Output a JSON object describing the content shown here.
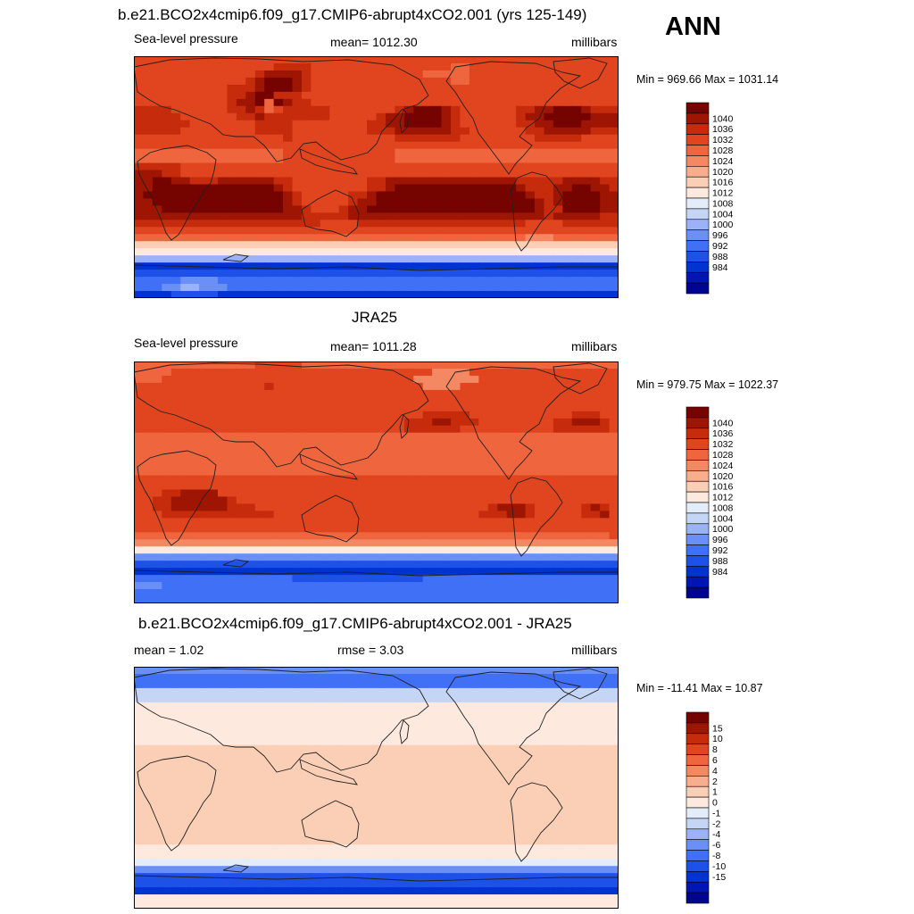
{
  "season": "ANN",
  "panels": [
    {
      "title": "b.e21.BCO2x4cmip6.f09_g17.CMIP6-abrupt4xCO2.001 (yrs 125-149)",
      "left_label": "Sea-level pressure",
      "center_label": "mean= 1012.30",
      "units": "millibars",
      "minmax": "Min = 969.66 Max = 1031.14",
      "palette": "slp",
      "map": [
        "eeeeeeeeeeeeeeeeeeeeeeeeeeeeeeeeeeeeeeeeeeeeeeeeeeee",
        "eeeeeeeeeeeeeeeffffeeeeeeeeeeeeeeeddeeeeeeeeeeeeeeee",
        "eeeeeeeeeeeeefggggfeeeeeeeeeeeedddddeeeeeeeeeeeeeeee",
        "eeeeeeeeeeeefgjjhgfeeeeeeeeeeeeeeeddeeeeeeeeeeeeeeee",
        "eeeeeeeeeefffgkihgfeeeeeeeeeeeeeeeeeeeeeeeeeeeeeeeee",
        "eeeeeeeeeeffgikfffeeeeeeeeeeeeeeeeeeeeeeeeeeeeeeeeee",
        "eeeeeeeeeefgghdhgffeeeeeeeeeeeeeeeeeeeeeeeeeeeeeeeee",
        "ffffeeeeeeffgfdefffffeeeeeeefghhhgfeeeeeeffgghhhgfff",
        "fffffeeeeeeffgfffffffeeeeefgghiihgfeeeeeefgghiiihggg",
        "ffffffeeeeeeeffffeeeeeeeeffgghhhhgfeeeeeeffgghhhgggg",
        "fffffeeeeeeeeffffeeeeeeeefffggggggffeeeeeeffgggggfff",
        "eeeeeeeeeeeeeeeefeeeeeeeeeeefffffffeeeeeeeefffffeeee",
        "eeeeeeeeeeeeeeeeeeeeeeeeeeeeeeeeeeeeeeeeeeeeeeeeeeee",
        "ddddddddddddddddeeeeeeeeeeeedddddddddddddddddddddddd",
        "ddddddddddddddddeeeeeeeeeeeedddddddddddddddddddddddd",
        "fffffeeeeeeeeeeeeeeeeeeeeeeeeeeeeeeeeeeeeeeeeeeeeeee",
        "gggffeeeeeeeeeeeeeeeeeeeeeeeeeeeeeeeeeeeeeeeeeeeeeee",
        "gghhggfffggggggffeeeeeeeeffggggggggggggggfffffggggff",
        "gghhhhhhhhhhhhhgfeeeeeeeeffghhhhhhhhhhhhhgfffgghhggf",
        "ghhhhhhhihhhhhhhgfeeeeeffghhhhhhhhhiiihhhhgffghhhhgg",
        "gghhhhhhhhhhhhhhgfeeeeefgghhhhhhhhhiiiihhhhgfghhhhgg",
        "ggghhhhhhhhhhhhhggfeeefgghhhhhhhhhhhhhhhhhhgffhhhhgg",
        "ggggggggggggggggggfffffgggggggggggggggggggggfgggggff",
        "ffffffffffffffffffffeeeeffffffffffffffffffeeeeffffff",
        "eeeeeeeeeeeeeeeeeeeeeeeeeeeeeeeeeeeeeeeeeeeeeeeeeeee",
        "ddddddddddddddddddddddddddddddddddddddddddcccddddddd",
        "aaaaaaaaaaaaaaaaaaaaaaaaaaaaaaaaaaaaaaaaaaaaaaaaaaaa",
        "9999999999999999999999999999999999999999999999999999",
        "6666666666666666666666666666666666666666666666666666",
        "2222222222222222222222222222222222222222222222222222",
        "3333333333333333333333333333333333333333333333333333",
        "4444455554444444444444444444444444444444444444444444",
        "4445566555444444444444444444444444444444444444444444",
        "2222333332222222222222222222222222222222222222222222"
      ],
      "colorbar": {
        "colors": [
          "#000590",
          "#0016b4",
          "#0133d1",
          "#1e51e8",
          "#3f70f5",
          "#6a90f8",
          "#9bb2f6",
          "#c5d5f5",
          "#e3ecf9",
          "#fde9dd",
          "#fbcfb5",
          "#f8ad8c",
          "#f48862",
          "#ee653e",
          "#e0451f",
          "#c62c0c",
          "#9e1504",
          "#750300"
        ],
        "labels": [
          "984",
          "988",
          "992",
          "996",
          "1000",
          "1004",
          "1008",
          "1012",
          "1016",
          "1020",
          "1024",
          "1028",
          "1032",
          "1036",
          "1040"
        ]
      }
    },
    {
      "title": "JRA25",
      "left_label": "Sea-level pressure",
      "center_label": "mean= 1011.28",
      "units": "millibars",
      "minmax": "Min = 979.75 Max = 1022.37",
      "palette": "slp",
      "map": [
        "dddddddddddddeeeeedddddddddddddddddddddddddddddddddd",
        "ddddeeeeeeeeeeeeeeeeeeeeeeeeeeeecccceeeeeeeeeeeeeeee",
        "dddeeeeeeeeeeeeeeeeeeeeeeeeeeeccccccceeeeeeeeeeeeeee",
        "eeeeeeeeeeeeeefeeeeeeeeeeeeeeeecccceeeeeeeeeeeeeeeee",
        "eeeeeeeeeeeeeeeeeeeeeeeeeeeeeeeeeeeeeeeeeeeeeeeeeeee",
        "eeeeeeeeeeeeeeeeeeeeeeeeeeeeeeeeeeeeeeeeeeeeeeeeeeee",
        "eeeeeeeeeeeeeeeeeeeeeeeeeeeeeeeeeeeeeeeeeeeeeeeeeeee",
        "eeeeeeeeeeeeeeeeeeeeeeeeeeeeeeefffffeeeeeeeeeeefffee",
        "eeeeeeeeeeeeeeeeeeeeeeeeeeeeefffggfffeeeeeeeeffgggfe",
        "eeeeeeeeeeeeeeeeeeeeeeeeeeeeeffffffeeeeeeeeeeffffffe",
        "dddddddddddddddddddddddddddddddddddddddddddddddddddd",
        "dddddddddddddddddddddddddddddddddddddddddddddddddddd",
        "dddddddddddddddddddddddddddddddddddddddddddddddddddd",
        "dddddddddddddddddddddddddddddddddddddddddddddddddddd",
        "dddddddddddddddddddddddddddddddddddddddddddddddddddd",
        "dddddddddddddddddddddddddddddddddddddddddddddddddddd",
        "eeeeeeeeeeeeeeeeeeeeeeeeeeeeeeeeeeeeeeeeeeeeeeeeeeee",
        "eeeeeeeeeeeeeeeeeeeeeeeeeeeeeeeeeeeeeeeeeeeeeeeeeeee",
        "eeeffggggeeeeeeeeeeeeeeeeeeeeeeeeeeeeeeeeeeeeeeeeeee",
        "eeffggggggfeeeeeeeeeeeeeeeeeeeeeeeeeeeeeeeeeeeeeeeee",
        "eeffggggggfffeeeeeeeeeeeeeeeeeeeeeeeeefgggfeeeeefgfe",
        "eeeffffffffffffeeeeeeeeeeeeeeeeeeeeeefffggfeeeeeffge",
        "eeeeeeeeeeeeeeeeeeeeeeeeeeeeeeeeeeeeeeeeeeeeeeeeeeee",
        "eeeeeeeeeeeeeeeeeeeeeeeeeeeeeeeeeeeeeeeeeeeeeeeeeeee",
        "ddddddddddddddddddddddddddddddddddddddddddddddddddde",
        "cccccccccccccccccccccccccccccccccccccccccccccccccccc",
        "9999999999999999999999999999999999999999999999999999",
        "5555555555555555555555555555555555555555555555555555",
        "3333333333333333333333333333333333333333333333333333",
        "2222222222222222222222222222222222222222222222222222",
        "4444444444444444433333333333333444444444444444444444",
        "5554444444444444444444444444444444444444444444444444",
        "4444444444444444444444444444444444444444444444444444",
        "4444444444444444444444444444444444444444444444444444"
      ],
      "colorbar": {
        "colors": [
          "#000590",
          "#0016b4",
          "#0133d1",
          "#1e51e8",
          "#3f70f5",
          "#6a90f8",
          "#9bb2f6",
          "#c5d5f5",
          "#e3ecf9",
          "#fde9dd",
          "#fbcfb5",
          "#f8ad8c",
          "#f48862",
          "#ee653e",
          "#e0451f",
          "#c62c0c",
          "#9e1504",
          "#750300"
        ],
        "labels": [
          "984",
          "988",
          "992",
          "996",
          "1000",
          "1004",
          "1008",
          "1012",
          "1016",
          "1020",
          "1024",
          "1028",
          "1032",
          "1036",
          "1040"
        ]
      }
    },
    {
      "title": "b.e21.BCO2x4cmip6.f09_g17.CMIP6-abrupt4xCO2.001 - JRA25",
      "left_label": "mean =   1.02",
      "center_label": "rmse =   3.03",
      "units": "millibars",
      "minmax": "Min = -11.41 Max =  10.87",
      "palette": "diff",
      "map": [
        "5555555555555555555555555555555555555555555555555555",
        "4444444444444444444444444444444444444444444444444444",
        "4444444444444444444444444444444444444444444444444444",
        "7777777777777777777777777777777777777777777777777777",
        "7777777777777777777777777777777777777777777777777777",
        "9999999999999999999999999999999999999999999999999999",
        "9999999999999999999999999999999999999999999999999999",
        "9999999999999999999999999999999999999999999999999999",
        "9999999999999999999999999999999999999999999999999999",
        "9999999999999999999999999999999999999999999999999999",
        "9999999999999999999999999999999999999999999999999999",
        "aaaaaaaaaaaaaaaaaaaaaaaaaaaaaaaaaaaaaaaaaaaaaaaaaaaa",
        "aaaaaaaaaaaaaaaaaaaaaaaaaaaaaaaaaaaaaaaaaaaaaaaaaaaa",
        "aaaaaaaaaaaaaaaaaaaaaaaaaaaaaaaaaaaaaaaaaaaaaaaaaaaa",
        "aaaaaaaaaaaaaaaaaaaaaaaaaaaaaaaaaaaaaaaaaaaaaaaaaaaa",
        "aaaaaaaaaaaaaaaaaaaaaaaaaaaaaaaaaaaaaaaaaaaaaaaaaaaa",
        "aaaaaaaaaaaaaaaaaaaaaaaaaaaaaaaaaaaaaaaaaaaaaaaaaaaa",
        "aaaaaaaaaaaaaaaaaaaaaaaaaaaaaaaaaaaaaaaaaaaaaaaaaaaa",
        "aaaaaaaaaaaaaaaaaaaaaaaaaaaaaaaaaaaaaaaaaaaaaaaaaaaa",
        "aaaaaaaaaaaaaaaaaaaaaaaaaaaaaaaaaaaaaaaaaaaaaaaaaaaa",
        "aaaaaaaaaaaaaaaaaaaaaaaaaaaaaaaaaaaaaaaaaaaaaaaaaaaa",
        "aaaaaaaaaaaaaaaaaaaaaaaaaaaaaaaaaaaaaaaaaaaaaaaaaaaa",
        "aaaaaaaaaaaaaaaaaaaaaaaaaaaaaaaaaaaaaaaaaaaaaaaaaaaa",
        "aaaaaaaaaaaaaaaaaaaaaaaaaaaaaaaaaaaaaaaaaaaaaaaaaaaa",
        "aaaaaaaaaaaaaaaaaaaaaaaaaaaaaaaaaaaaaaaaaaaaaaaaaaaa",
        "9999999999999999999999999999999999999999999999999999",
        "9999999999999999999999999999999999999999999999999999",
        "8888888888888888888888888888888888888888888888888888",
        "5555555555555555555555555555555555555555555555555555",
        "3333333333333333333333333333333333333333333333333333",
        "3333333333333333333333333333333333333333333333333333",
        "2222222222222222222222222222222222222222222222222222",
        "9999999999999999999999999999999999999999999999999999",
        "9999999999999999999999999999999999999999999999999999"
      ],
      "colorbar": {
        "colors": [
          "#000590",
          "#0016b4",
          "#0133d1",
          "#1e51e8",
          "#3f70f5",
          "#6a90f8",
          "#9bb2f6",
          "#c5d5f5",
          "#e3ecf9",
          "#fde9dd",
          "#fbcfb5",
          "#f8ad8c",
          "#f48862",
          "#ee653e",
          "#e0451f",
          "#c62c0c",
          "#9e1504",
          "#750300"
        ],
        "labels": [
          "-15",
          "-10",
          "-8",
          "-6",
          "-4",
          "-2",
          "-1",
          "0",
          "1",
          "2",
          "4",
          "6",
          "8",
          "10",
          "15"
        ]
      }
    }
  ]
}
